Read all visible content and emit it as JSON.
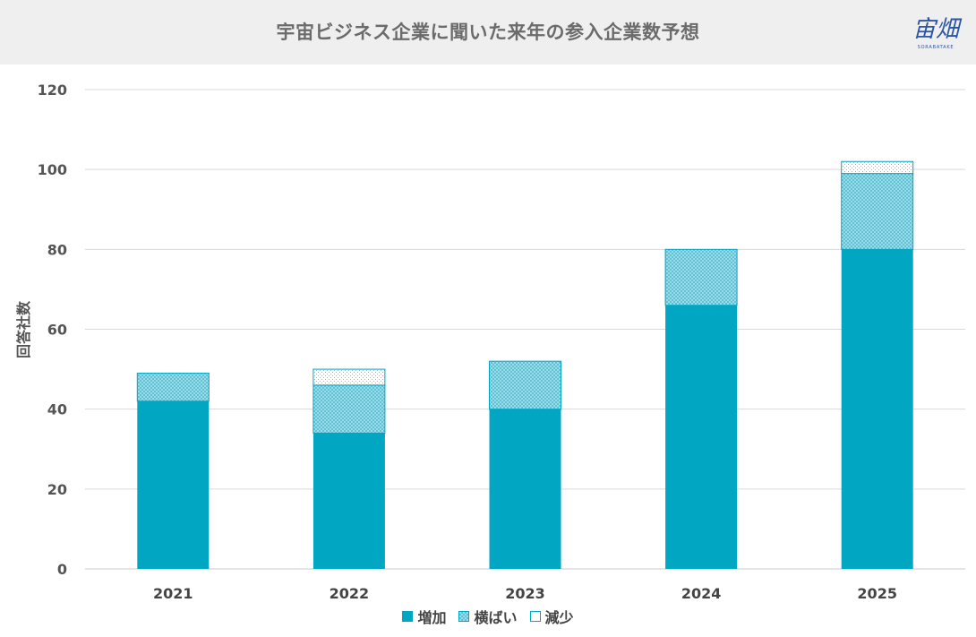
{
  "header": {
    "title": "宇宙ビジネス企業に聞いた来年の参入企業数予想",
    "logo_text": "宙畑",
    "logo_sub": "SORABATAKE"
  },
  "colors": {
    "increase": "#00a6c2",
    "flat": "#8fd4e0",
    "decrease": "#ffffff",
    "outline": "#00a6c2",
    "grid": "#d9d9d9"
  },
  "chart_data": {
    "type": "bar",
    "stacked": true,
    "categories": [
      "2021",
      "2022",
      "2023",
      "2024",
      "2025"
    ],
    "series": [
      {
        "name": "増加",
        "values": [
          42,
          34,
          40,
          66,
          80
        ]
      },
      {
        "name": "横ばい",
        "values": [
          7,
          12,
          12,
          14,
          19
        ]
      },
      {
        "name": "減少",
        "values": [
          0,
          4,
          0,
          0,
          3
        ]
      }
    ],
    "title": "宇宙ビジネス企業に聞いた来年の参入企業数予想",
    "xlabel": "",
    "ylabel": "回答社数",
    "ylim": [
      0,
      120
    ],
    "yticks": [
      0,
      20,
      40,
      60,
      80,
      100,
      120
    ],
    "grid": true,
    "legend_position": "bottom"
  }
}
